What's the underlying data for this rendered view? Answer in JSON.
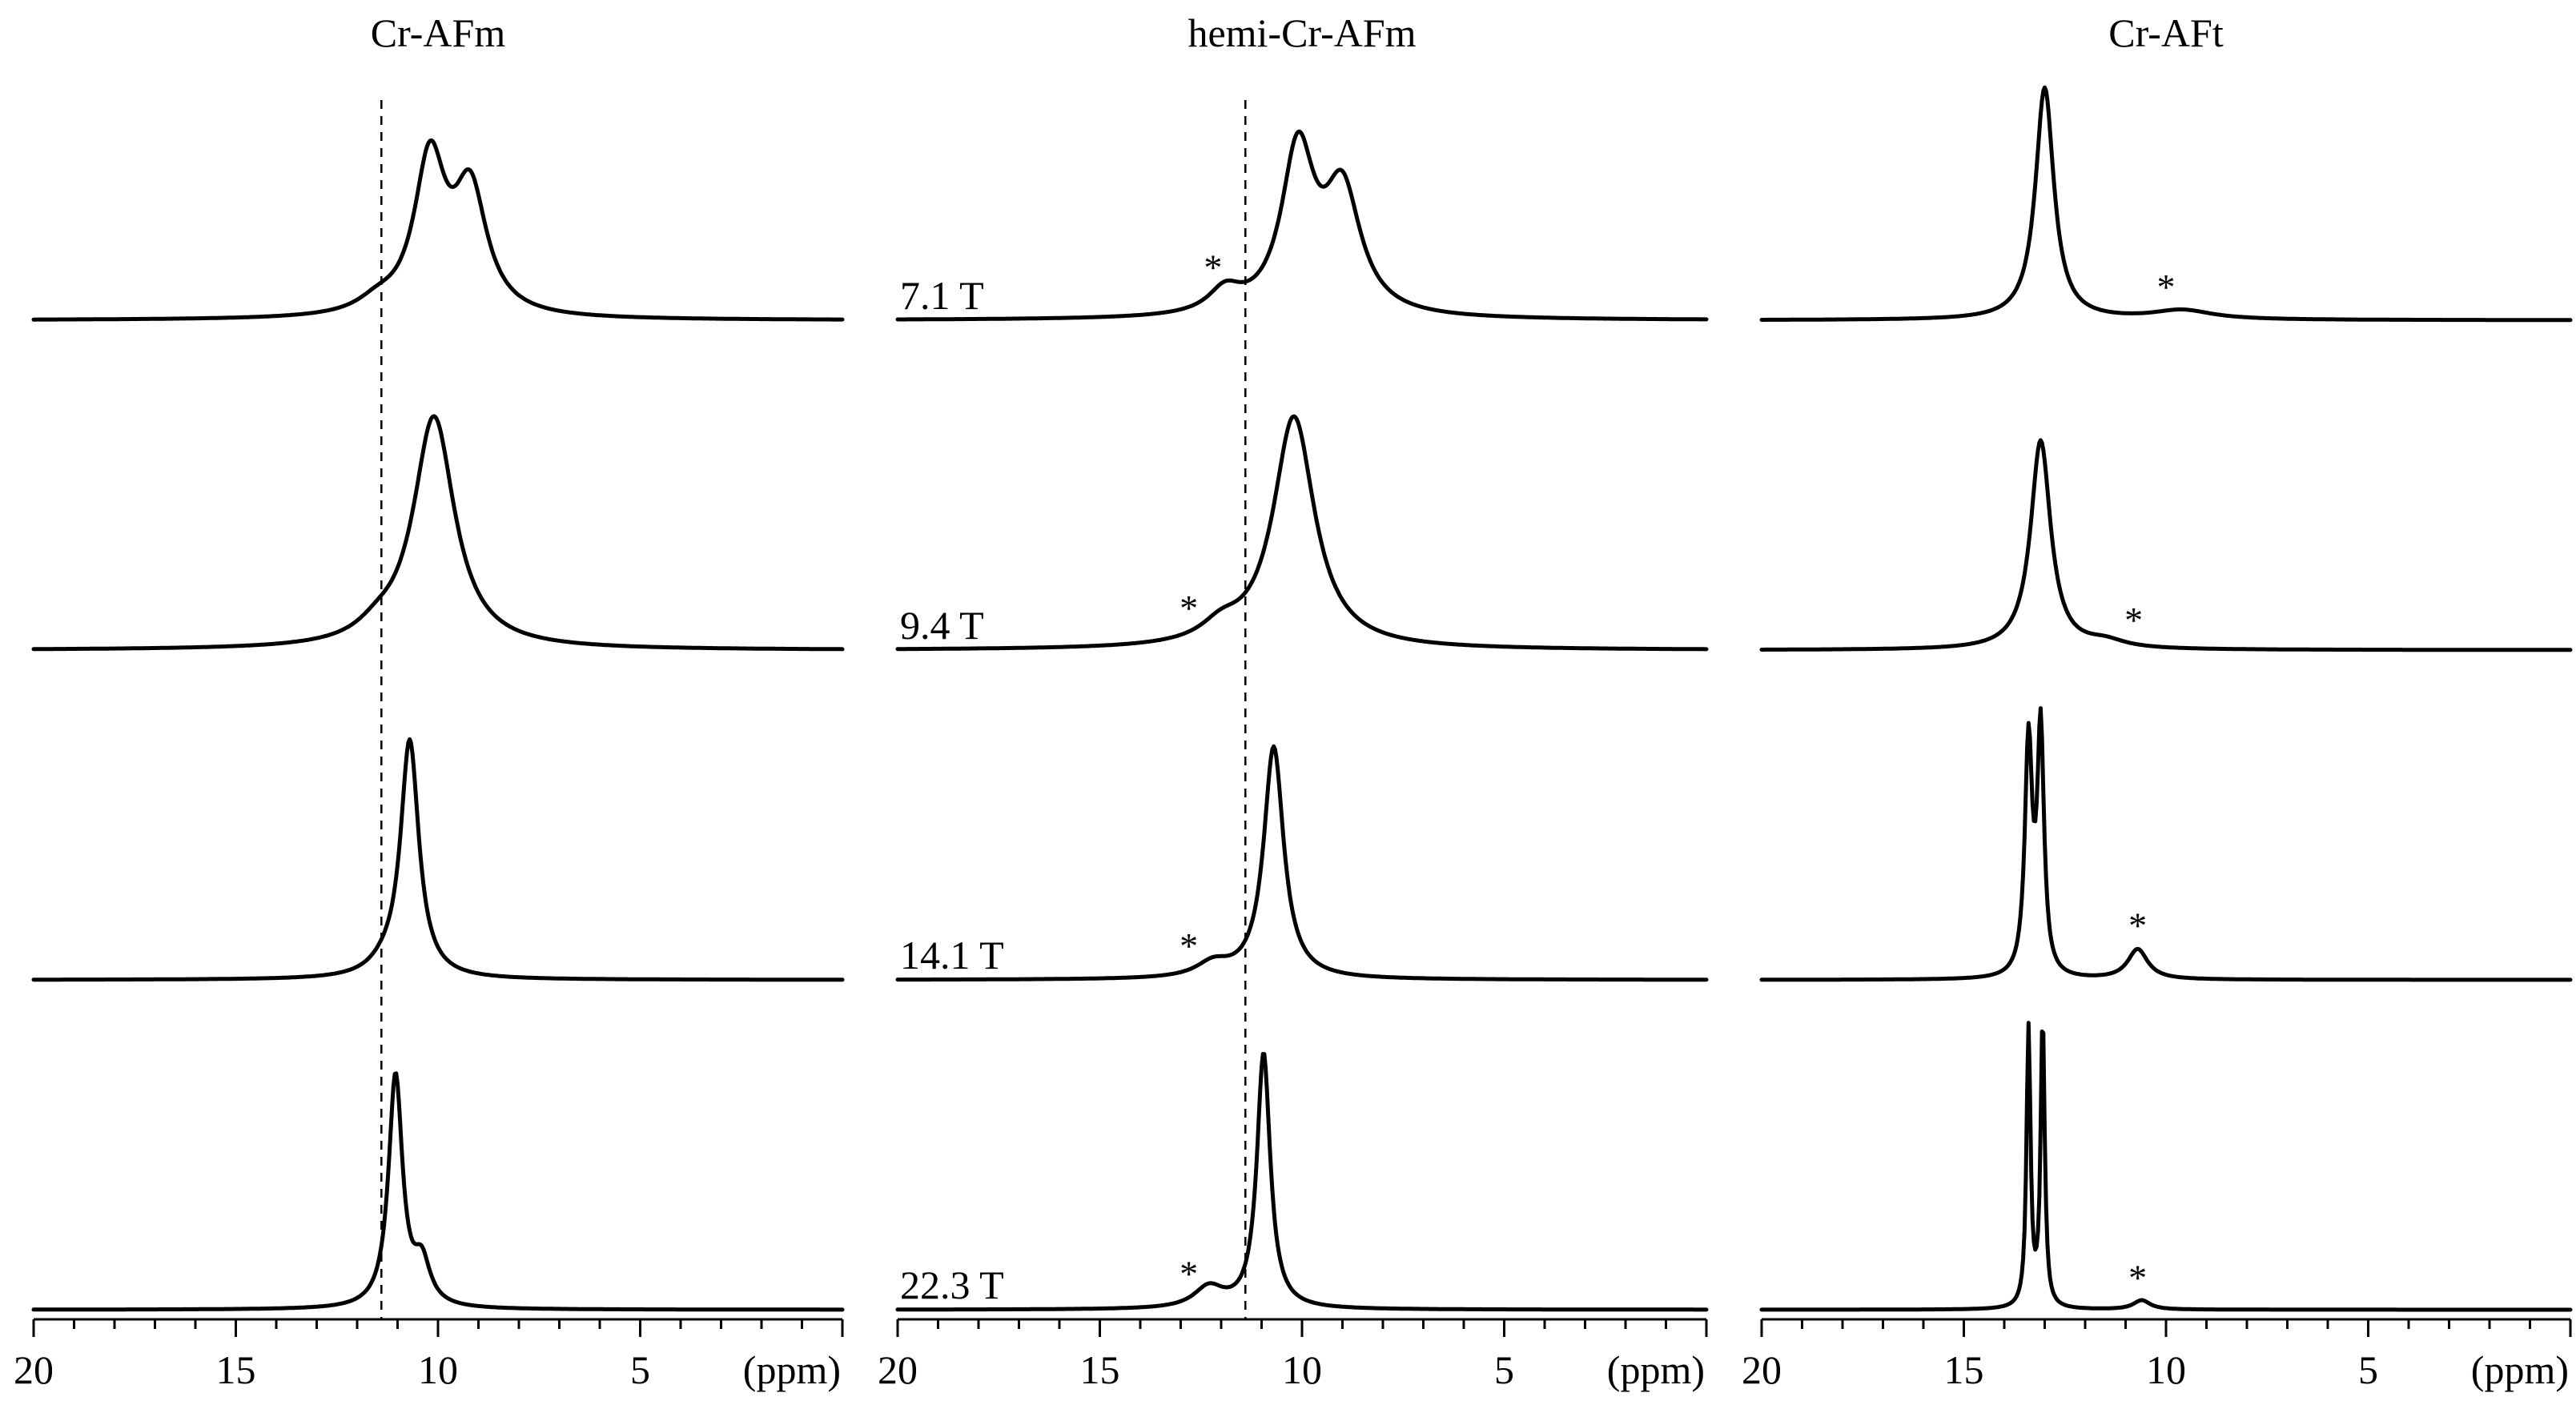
{
  "colors": {
    "line": "#000000",
    "background": "#ffffff"
  },
  "chart_data": {
    "type": "line",
    "x_unit_label": "(ppm)",
    "xlim": [
      20,
      0
    ],
    "x_major_ticks": [
      20,
      15,
      10,
      5
    ],
    "x_minor_step": 1,
    "field_labels": [
      "7.1 T",
      "9.4 T",
      "14.1 T",
      "22.3 T"
    ],
    "panels": [
      {
        "title": "Cr-AFm",
        "reference_ppm": 11.4,
        "traces": [
          {
            "field": "7.1 T",
            "peaks": [
              {
                "c": 10.2,
                "a": 0.66,
                "w": 0.95
              },
              {
                "c": 9.2,
                "a": 0.52,
                "w": 1.0
              },
              {
                "c": 11.5,
                "a": 0.05,
                "w": 1.2
              }
            ],
            "asterisk": null
          },
          {
            "field": "9.4 T",
            "peaks": [
              {
                "c": 10.1,
                "a": 1.0,
                "w": 1.25
              },
              {
                "c": 11.5,
                "a": 0.05,
                "w": 1.2
              }
            ],
            "asterisk": null
          },
          {
            "field": "14.1 T",
            "peaks": [
              {
                "c": 10.7,
                "a": 1.02,
                "w": 0.55
              },
              {
                "c": 11.3,
                "a": 0.04,
                "w": 1.0
              }
            ],
            "asterisk": null
          },
          {
            "field": "22.3 T",
            "peaks": [
              {
                "c": 11.05,
                "a": 1.0,
                "w": 0.42
              },
              {
                "c": 10.4,
                "a": 0.18,
                "w": 0.5
              }
            ],
            "asterisk": null
          }
        ]
      },
      {
        "title": "hemi-Cr-AFm",
        "reference_ppm": 11.4,
        "traces": [
          {
            "field": "7.1 T",
            "peaks": [
              {
                "c": 10.1,
                "a": 0.7,
                "w": 1.0
              },
              {
                "c": 9.0,
                "a": 0.52,
                "w": 1.1
              },
              {
                "c": 11.9,
                "a": 0.1,
                "w": 1.0
              }
            ],
            "asterisk": 12.2
          },
          {
            "field": "9.4 T",
            "peaks": [
              {
                "c": 10.2,
                "a": 1.0,
                "w": 1.25
              },
              {
                "c": 12.0,
                "a": 0.07,
                "w": 1.2
              }
            ],
            "asterisk": 12.8
          },
          {
            "field": "14.1 T",
            "peaks": [
              {
                "c": 10.7,
                "a": 1.0,
                "w": 0.6
              },
              {
                "c": 12.2,
                "a": 0.06,
                "w": 1.0
              }
            ],
            "asterisk": 12.8
          },
          {
            "field": "22.3 T",
            "peaks": [
              {
                "c": 10.95,
                "a": 1.1,
                "w": 0.4
              },
              {
                "c": 12.3,
                "a": 0.09,
                "w": 0.9
              }
            ],
            "asterisk": 12.8
          }
        ]
      },
      {
        "title": "Cr-AFt",
        "reference_ppm": null,
        "traces": [
          {
            "field": "7.1 T",
            "peaks": [
              {
                "c": 13.0,
                "a": 1.0,
                "w": 0.55
              },
              {
                "c": 9.6,
                "a": 0.04,
                "w": 1.8
              }
            ],
            "asterisk": 10.0
          },
          {
            "field": "9.4 T",
            "peaks": [
              {
                "c": 13.1,
                "a": 0.9,
                "w": 0.6
              },
              {
                "c": 11.5,
                "a": 0.03,
                "w": 1.2
              }
            ],
            "asterisk": 10.8
          },
          {
            "field": "14.1 T",
            "peaks": [
              {
                "c": 13.4,
                "a": 1.0,
                "w": 0.22
              },
              {
                "c": 13.1,
                "a": 1.05,
                "w": 0.2
              },
              {
                "c": 10.7,
                "a": 0.13,
                "w": 0.6
              }
            ],
            "asterisk": 10.7
          },
          {
            "field": "22.3 T",
            "peaks": [
              {
                "c": 13.4,
                "a": 1.2,
                "w": 0.12
              },
              {
                "c": 13.05,
                "a": 1.25,
                "w": 0.12
              },
              {
                "c": 10.6,
                "a": 0.04,
                "w": 0.5
              }
            ],
            "asterisk": 10.7
          }
        ]
      }
    ]
  }
}
